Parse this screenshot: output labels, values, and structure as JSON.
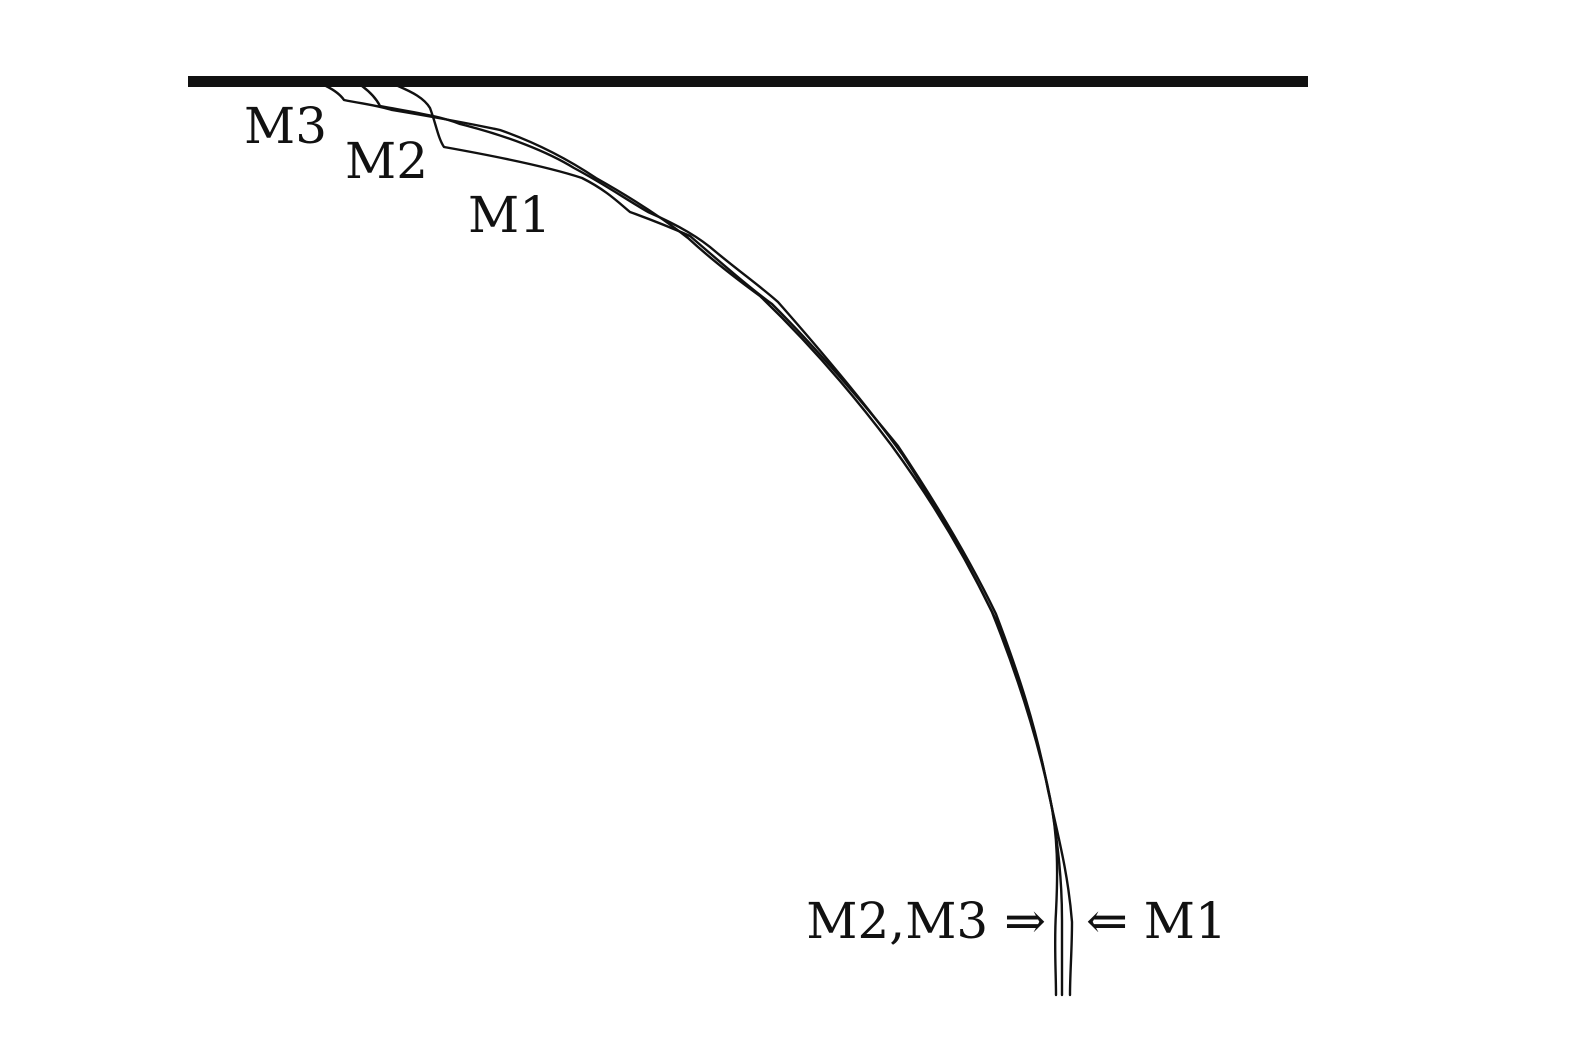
{
  "figure": {
    "colors": {
      "background": "#ffffff",
      "ink": "#111111"
    },
    "boundary": {
      "name": "top-wall"
    },
    "curves": [
      {
        "name": "M1"
      },
      {
        "name": "M2"
      },
      {
        "name": "M3"
      }
    ],
    "labels": {
      "m3_top": "M3",
      "m2_top": "M2",
      "m1_top": "M1",
      "m2m3_bottom": "M2,M3 ⇒",
      "m1_bottom": "⇐ M1"
    }
  }
}
